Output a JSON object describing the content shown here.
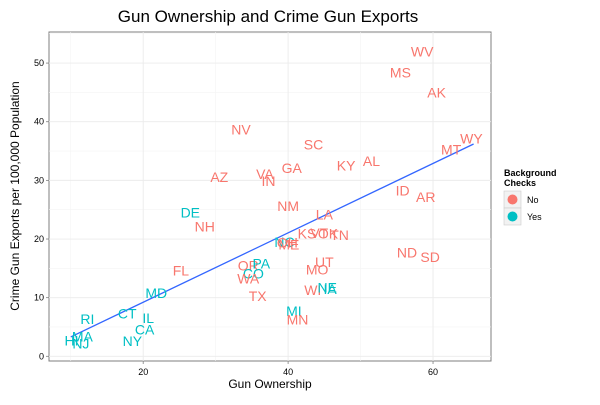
{
  "chart_data": {
    "type": "scatter",
    "title": "Gun Ownership and Crime Gun Exports",
    "xlabel": "Gun Ownership",
    "ylabel": "Crime Gun Exports per 100,000 Population",
    "xlim": [
      7,
      68
    ],
    "ylim": [
      -0.8,
      55.3
    ],
    "x_ticks": [
      "20",
      "40",
      "60"
    ],
    "x_tick_values": [
      20,
      40,
      60
    ],
    "y_ticks": [
      "0",
      "10",
      "20",
      "30",
      "40",
      "50"
    ],
    "y_tick_values": [
      0,
      10,
      20,
      30,
      40,
      50
    ],
    "grid": true,
    "legend": {
      "title_lines": [
        "Background",
        "Checks"
      ],
      "position": "right",
      "entries": [
        {
          "label": "No",
          "color": "#F8766D"
        },
        {
          "label": "Yes",
          "color": "#00BFC4"
        }
      ]
    },
    "trend_line": {
      "x": [
        10,
        65.6
      ],
      "y": [
        3.3,
        36.2
      ],
      "color": "#3366FF"
    },
    "points": [
      {
        "label": "WV",
        "x": 58.5,
        "y": 52,
        "group": "No"
      },
      {
        "label": "MS",
        "x": 55.5,
        "y": 48.4,
        "group": "No"
      },
      {
        "label": "AK",
        "x": 60.5,
        "y": 45,
        "group": "No"
      },
      {
        "label": "NV",
        "x": 33.5,
        "y": 38.7,
        "group": "No"
      },
      {
        "label": "SC",
        "x": 43.5,
        "y": 36.1,
        "group": "No"
      },
      {
        "label": "WY",
        "x": 65.3,
        "y": 37.1,
        "group": "No"
      },
      {
        "label": "MT",
        "x": 62.5,
        "y": 35.3,
        "group": "No"
      },
      {
        "label": "AL",
        "x": 51.5,
        "y": 33.3,
        "group": "No"
      },
      {
        "label": "KY",
        "x": 48,
        "y": 32.5,
        "group": "No"
      },
      {
        "label": "GA",
        "x": 40.5,
        "y": 32.1,
        "group": "No"
      },
      {
        "label": "VA",
        "x": 36.8,
        "y": 31.1,
        "group": "No"
      },
      {
        "label": "AZ",
        "x": 30.5,
        "y": 30.6,
        "group": "No"
      },
      {
        "label": "IN",
        "x": 37.3,
        "y": 29.9,
        "group": "No"
      },
      {
        "label": "ID",
        "x": 55.8,
        "y": 28.3,
        "group": "No"
      },
      {
        "label": "AR",
        "x": 59,
        "y": 27.2,
        "group": "No"
      },
      {
        "label": "NM",
        "x": 40,
        "y": 25.6,
        "group": "No"
      },
      {
        "label": "DE",
        "x": 26.5,
        "y": 24.5,
        "group": "Yes"
      },
      {
        "label": "LA",
        "x": 45,
        "y": 24.2,
        "group": "No"
      },
      {
        "label": "NH",
        "x": 28.5,
        "y": 22.1,
        "group": "No"
      },
      {
        "label": "KS",
        "x": 42.6,
        "y": 20.9,
        "group": "No"
      },
      {
        "label": "OK",
        "x": 45.5,
        "y": 20.9,
        "group": "No"
      },
      {
        "label": "TN",
        "x": 47.1,
        "y": 20.7,
        "group": "No"
      },
      {
        "label": "VT",
        "x": 44.3,
        "y": 21,
        "group": "No"
      },
      {
        "label": "NC",
        "x": 39.5,
        "y": 19.5,
        "group": "Yes"
      },
      {
        "label": "OH",
        "x": 39.9,
        "y": 19.4,
        "group": "No"
      },
      {
        "label": "ME",
        "x": 40.1,
        "y": 19.1,
        "group": "No"
      },
      {
        "label": "ND",
        "x": 56.4,
        "y": 17.7,
        "group": "No"
      },
      {
        "label": "SD",
        "x": 59.6,
        "y": 16.9,
        "group": "No"
      },
      {
        "label": "UT",
        "x": 45,
        "y": 16.1,
        "group": "No"
      },
      {
        "label": "OR",
        "x": 34.5,
        "y": 15.5,
        "group": "No"
      },
      {
        "label": "PA",
        "x": 36.3,
        "y": 15.8,
        "group": "Yes"
      },
      {
        "label": "FL",
        "x": 25.2,
        "y": 14.6,
        "group": "No"
      },
      {
        "label": "MO",
        "x": 44,
        "y": 14.8,
        "group": "No"
      },
      {
        "label": "CO",
        "x": 35.2,
        "y": 14.1,
        "group": "Yes"
      },
      {
        "label": "WA",
        "x": 34.5,
        "y": 13.3,
        "group": "No"
      },
      {
        "label": "WI",
        "x": 43.4,
        "y": 11.3,
        "group": "No"
      },
      {
        "label": "NE",
        "x": 45.4,
        "y": 11.7,
        "group": "Yes"
      },
      {
        "label": "IA",
        "x": 45.8,
        "y": 11.5,
        "group": "Yes"
      },
      {
        "label": "MD",
        "x": 21.8,
        "y": 10.8,
        "group": "Yes"
      },
      {
        "label": "TX",
        "x": 35.8,
        "y": 10.3,
        "group": "No"
      },
      {
        "label": "MI",
        "x": 40.8,
        "y": 7.7,
        "group": "Yes"
      },
      {
        "label": "CT",
        "x": 17.8,
        "y": 7.3,
        "group": "Yes"
      },
      {
        "label": "MN",
        "x": 41.3,
        "y": 6.3,
        "group": "No"
      },
      {
        "label": "IL",
        "x": 20.7,
        "y": 6.5,
        "group": "Yes"
      },
      {
        "label": "RI",
        "x": 12.3,
        "y": 6.4,
        "group": "Yes"
      },
      {
        "label": "CA",
        "x": 20.2,
        "y": 4.6,
        "group": "Yes"
      },
      {
        "label": "MA",
        "x": 11.6,
        "y": 3.4,
        "group": "Yes"
      },
      {
        "label": "NY",
        "x": 18.5,
        "y": 2.6,
        "group": "Yes"
      },
      {
        "label": "HI",
        "x": 10.1,
        "y": 2.7,
        "group": "Yes"
      },
      {
        "label": "NJ",
        "x": 11.4,
        "y": 2.2,
        "group": "Yes"
      }
    ]
  }
}
